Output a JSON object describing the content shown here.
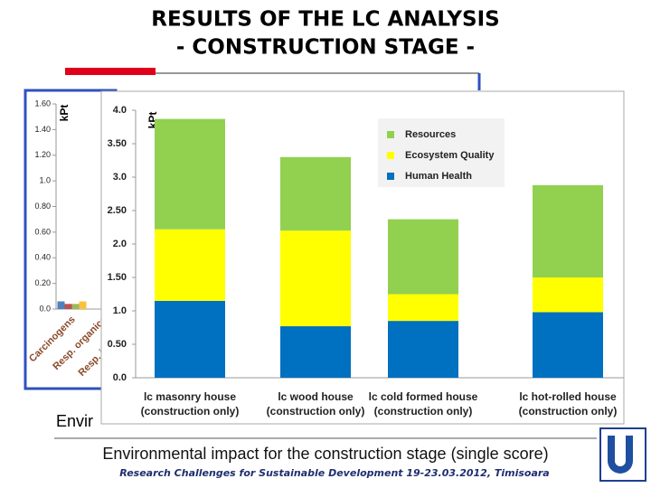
{
  "slide": {
    "title_lines": [
      "RESULTS OF THE LC ANALYSIS",
      "- CONSTRUCTION STAGE -"
    ],
    "hidden_caption": "Envir",
    "caption": "Environmental impact for the construction stage (single score)",
    "footer": "Research Challenges for Sustainable Development 19-23.03.2012, Timisoara"
  },
  "chart_data": [
    {
      "type": "bar",
      "ylabel": "kPt",
      "categories": [
        "Carcinogens",
        "Resp. organics",
        "Resp. inorganics"
      ],
      "series": [
        {
          "color": "#4f81bd",
          "values": [
            0.06,
            null,
            null
          ]
        },
        {
          "color": "#c0504d",
          "values": [
            0.04,
            null,
            null
          ]
        },
        {
          "color": "#9bbb59",
          "values": [
            0.04,
            null,
            null
          ]
        },
        {
          "color": "#f9c23c",
          "values": [
            0.06,
            null,
            null
          ]
        }
      ],
      "ylim": [
        0,
        1.6
      ],
      "yticks": [
        {
          "value": 0,
          "label": "0.0"
        },
        {
          "value": 0.2,
          "label": "0.20"
        },
        {
          "value": 0.4,
          "label": "0.40"
        },
        {
          "value": 0.6,
          "label": "0.60"
        },
        {
          "value": 0.8,
          "label": "0.80"
        },
        {
          "value": 1,
          "label": "1.0"
        },
        {
          "value": 1.2,
          "label": "1.20"
        },
        {
          "value": 1.4,
          "label": "1.40"
        },
        {
          "value": 1.6,
          "label": "1.60"
        }
      ]
    },
    {
      "type": "stacked-bar",
      "ylabel": "kPt",
      "categories": [
        "lc masonry house (construction only)",
        "lc wood house (construction only)",
        "lc cold formed house (construction only)",
        "lc hot-rolled house (construction only)"
      ],
      "series": [
        {
          "name": "Human Health",
          "color": "#0070c0",
          "values": [
            1.15,
            0.77,
            0.85,
            0.98
          ]
        },
        {
          "name": "Ecosystem Quality",
          "color": "#ffff00",
          "values": [
            1.07,
            1.43,
            0.4,
            0.52
          ]
        },
        {
          "name": "Resources",
          "color": "#92d050",
          "values": [
            1.65,
            1.1,
            1.12,
            1.38
          ]
        }
      ],
      "ylim": [
        0,
        4
      ],
      "yticks": [
        {
          "value": 0,
          "label": "0.0"
        },
        {
          "value": 0.5,
          "label": "0.50"
        },
        {
          "value": 1,
          "label": "1.0"
        },
        {
          "value": 1.5,
          "label": "1.50"
        },
        {
          "value": 2,
          "label": "2.0"
        },
        {
          "value": 2.5,
          "label": "2.50"
        },
        {
          "value": 3,
          "label": "3.0"
        },
        {
          "value": 3.5,
          "label": "3.50"
        },
        {
          "value": 4,
          "label": "4.0"
        }
      ],
      "legend": "top-right"
    }
  ]
}
